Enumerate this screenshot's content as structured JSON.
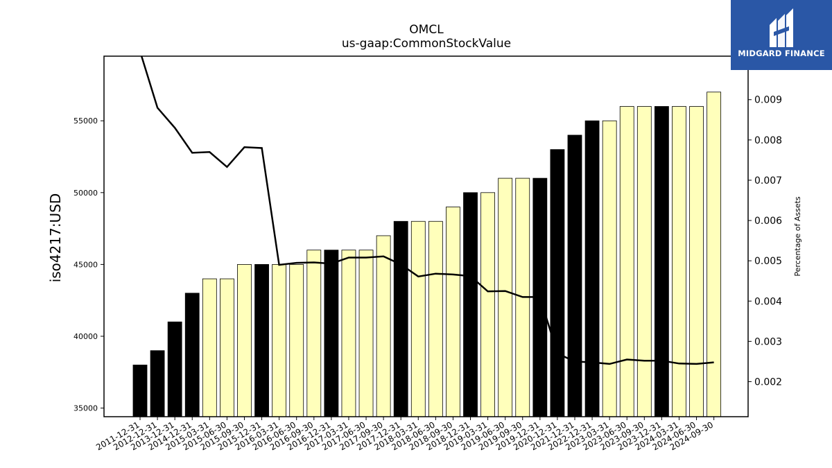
{
  "chart_data": {
    "type": "bar",
    "title": "OMCL",
    "subtitle": "us-gaap:CommonStockValue",
    "ylabel": "iso4217:USD",
    "y2label": "Percentage of Assets",
    "ylim": [
      34400,
      59500
    ],
    "y2lim": [
      0.00113,
      0.01008
    ],
    "yticks": [
      35000,
      40000,
      45000,
      50000,
      55000
    ],
    "y2ticks": [
      0.002,
      0.003,
      0.004,
      0.005,
      0.006,
      0.007,
      0.008,
      0.009
    ],
    "categories": [
      "2011-12-31",
      "2012-12-31",
      "2013-12-31",
      "2014-12-31",
      "2015-03-31",
      "2015-06-30",
      "2015-09-30",
      "2015-12-31",
      "2016-03-31",
      "2016-06-30",
      "2016-09-30",
      "2016-12-31",
      "2017-03-31",
      "2017-06-30",
      "2017-09-30",
      "2017-12-31",
      "2018-03-31",
      "2018-06-30",
      "2018-09-30",
      "2018-12-31",
      "2019-03-31",
      "2019-06-30",
      "2019-09-30",
      "2019-12-31",
      "2020-12-31",
      "2021-12-31",
      "2022-12-31",
      "2023-03-31",
      "2023-06-30",
      "2023-09-30",
      "2023-12-31",
      "2024-03-31",
      "2024-06-30",
      "2024-09-30"
    ],
    "values": [
      38000,
      39000,
      41000,
      43000,
      44000,
      44000,
      45000,
      45000,
      45000,
      45000,
      46000,
      46000,
      46000,
      46000,
      47000,
      48000,
      48000,
      48000,
      49000,
      50000,
      50000,
      51000,
      51000,
      51000,
      53000,
      54000,
      55000,
      55000,
      56000,
      56000,
      56000,
      56000,
      56000,
      57000
    ],
    "annual": [
      true,
      true,
      true,
      true,
      false,
      false,
      false,
      true,
      false,
      false,
      false,
      true,
      false,
      false,
      false,
      true,
      false,
      false,
      false,
      true,
      false,
      false,
      false,
      true,
      true,
      true,
      true,
      false,
      false,
      false,
      true,
      false,
      false,
      false
    ],
    "pct_of_assets": [
      0.0102,
      0.0088,
      0.0083,
      0.00768,
      0.0077,
      0.00733,
      0.00782,
      0.0078,
      0.0049,
      0.00495,
      0.00496,
      0.00493,
      0.00508,
      0.00508,
      0.00511,
      0.00491,
      0.00461,
      0.00468,
      0.00466,
      0.00462,
      0.00424,
      0.00425,
      0.0041,
      0.0041,
      0.0027,
      0.0025,
      0.00248,
      0.00244,
      0.00255,
      0.00252,
      0.00252,
      0.00245,
      0.00244,
      0.00248
    ],
    "colors": {
      "annual_bar": "#000000",
      "quarter_bar": "#ffffbb",
      "line": "#000000"
    }
  },
  "logo": {
    "text": "MIDGARD FINANCE"
  }
}
